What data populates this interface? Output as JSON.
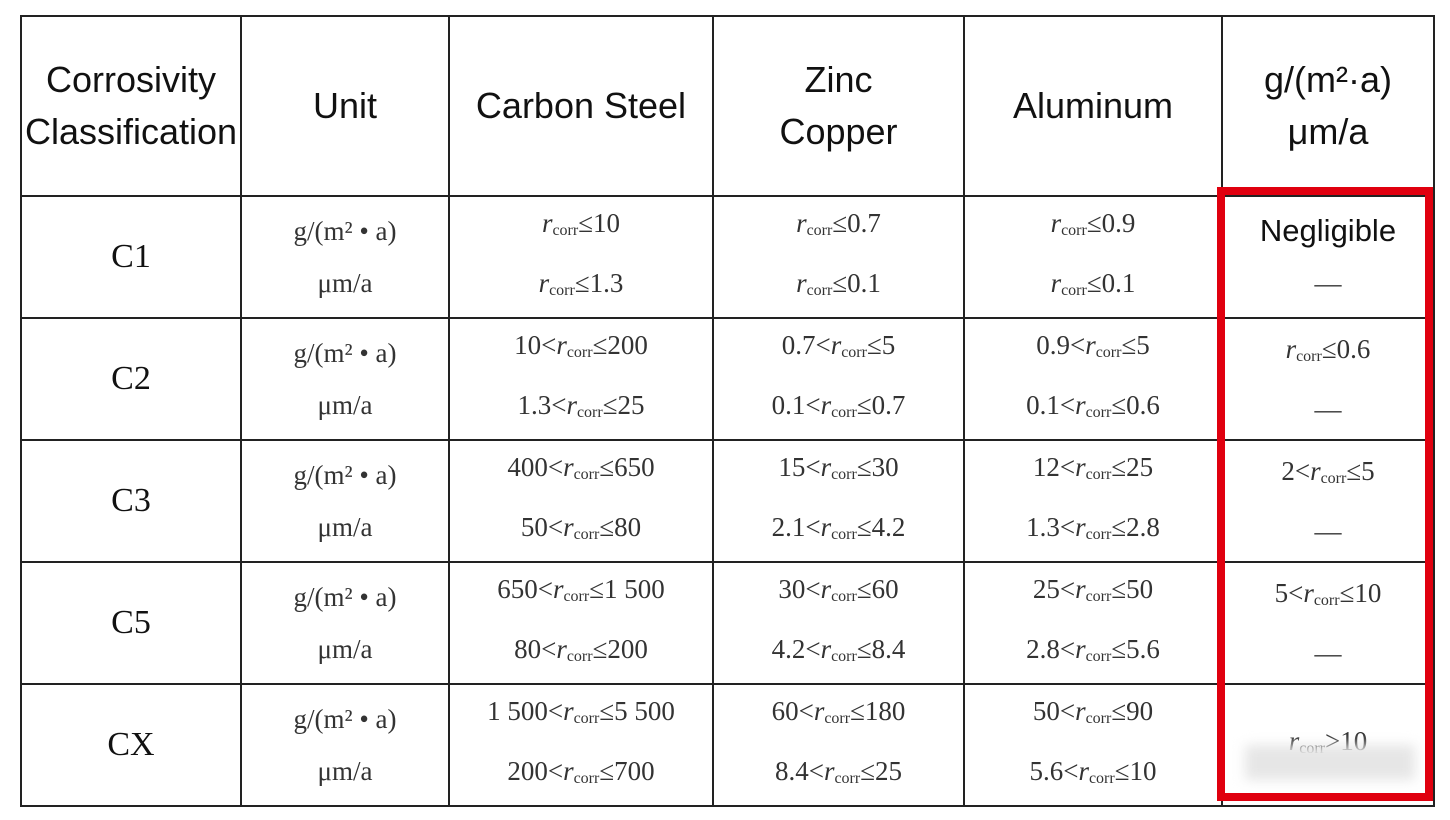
{
  "table": {
    "header": [
      [
        "Corrosivity",
        "Classification"
      ],
      [
        "Unit"
      ],
      [
        "Carbon Steel"
      ],
      [
        "Zinc",
        "Copper"
      ],
      [
        "Aluminum"
      ],
      [
        "g/(m²·a)",
        "μm/a"
      ]
    ],
    "rows": [
      [
        [
          "C1"
        ],
        [
          "g/(m² • a)",
          "μm/a"
        ],
        [
          {
            "var": "r",
            "sub": "corr",
            "post": "≤10"
          },
          {
            "var": "r",
            "sub": "corr",
            "post": "≤1.3"
          }
        ],
        [
          {
            "var": "r",
            "sub": "corr",
            "post": "≤0.7"
          },
          {
            "var": "r",
            "sub": "corr",
            "post": "≤0.1"
          }
        ],
        [
          {
            "var": "r",
            "sub": "corr",
            "post": "≤0.9"
          },
          {
            "var": "r",
            "sub": "corr",
            "post": "≤0.1"
          }
        ],
        [
          "Negligible",
          "—"
        ]
      ],
      [
        [
          "C2"
        ],
        [
          "g/(m² • a)",
          "μm/a"
        ],
        [
          {
            "pre": "10<",
            "var": "r",
            "sub": "corr",
            "post": "≤200"
          },
          {
            "pre": "1.3<",
            "var": "r",
            "sub": "corr",
            "post": "≤25"
          }
        ],
        [
          {
            "pre": "0.7<",
            "var": "r",
            "sub": "corr",
            "post": "≤5"
          },
          {
            "pre": "0.1<",
            "var": "r",
            "sub": "corr",
            "post": "≤0.7"
          }
        ],
        [
          {
            "pre": "0.9<",
            "var": "r",
            "sub": "corr",
            "post": "≤5"
          },
          {
            "pre": "0.1<",
            "var": "r",
            "sub": "corr",
            "post": "≤0.6"
          }
        ],
        [
          {
            "var": "r",
            "sub": "corr",
            "post": "≤0.6"
          },
          "—"
        ]
      ],
      [
        [
          "C3"
        ],
        [
          "g/(m² • a)",
          "μm/a"
        ],
        [
          {
            "pre": "400<",
            "var": "r",
            "sub": "corr",
            "post": "≤650"
          },
          {
            "pre": "50<",
            "var": "r",
            "sub": "corr",
            "post": "≤80"
          }
        ],
        [
          {
            "pre": "15<",
            "var": "r",
            "sub": "corr",
            "post": "≤30"
          },
          {
            "pre": "2.1<",
            "var": "r",
            "sub": "corr",
            "post": "≤4.2"
          }
        ],
        [
          {
            "pre": "12<",
            "var": "r",
            "sub": "corr",
            "post": "≤25"
          },
          {
            "pre": "1.3<",
            "var": "r",
            "sub": "corr",
            "post": "≤2.8"
          }
        ],
        [
          {
            "pre": "2<",
            "var": "r",
            "sub": "corr",
            "post": "≤5"
          },
          "—"
        ]
      ],
      [
        [
          "C5"
        ],
        [
          "g/(m² • a)",
          "μm/a"
        ],
        [
          {
            "pre": "650<",
            "var": "r",
            "sub": "corr",
            "post": "≤1 500"
          },
          {
            "pre": "80<",
            "var": "r",
            "sub": "corr",
            "post": "≤200"
          }
        ],
        [
          {
            "pre": "30<",
            "var": "r",
            "sub": "corr",
            "post": "≤60"
          },
          {
            "pre": "4.2<",
            "var": "r",
            "sub": "corr",
            "post": "≤8.4"
          }
        ],
        [
          {
            "pre": "25<",
            "var": "r",
            "sub": "corr",
            "post": "≤50"
          },
          {
            "pre": "2.8<",
            "var": "r",
            "sub": "corr",
            "post": "≤5.6"
          }
        ],
        [
          {
            "pre": "5<",
            "var": "r",
            "sub": "corr",
            "post": "≤10"
          },
          "—"
        ]
      ],
      [
        [
          "CX"
        ],
        [
          "g/(m² • a)",
          "μm/a"
        ],
        [
          {
            "pre": "1 500<",
            "var": "r",
            "sub": "corr",
            "post": "≤5 500"
          },
          {
            "pre": "200<",
            "var": "r",
            "sub": "corr",
            "post": "≤700"
          }
        ],
        [
          {
            "pre": "60<",
            "var": "r",
            "sub": "corr",
            "post": "≤180"
          },
          {
            "pre": "8.4<",
            "var": "r",
            "sub": "corr",
            "post": "≤25"
          }
        ],
        [
          {
            "pre": "50<",
            "var": "r",
            "sub": "corr",
            "post": "≤90"
          },
          {
            "pre": "5.6<",
            "var": "r",
            "sub": "corr",
            "post": "≤10"
          }
        ],
        [
          {
            "var": "r",
            "sub": "corr",
            "post": ">10"
          }
        ]
      ]
    ]
  }
}
